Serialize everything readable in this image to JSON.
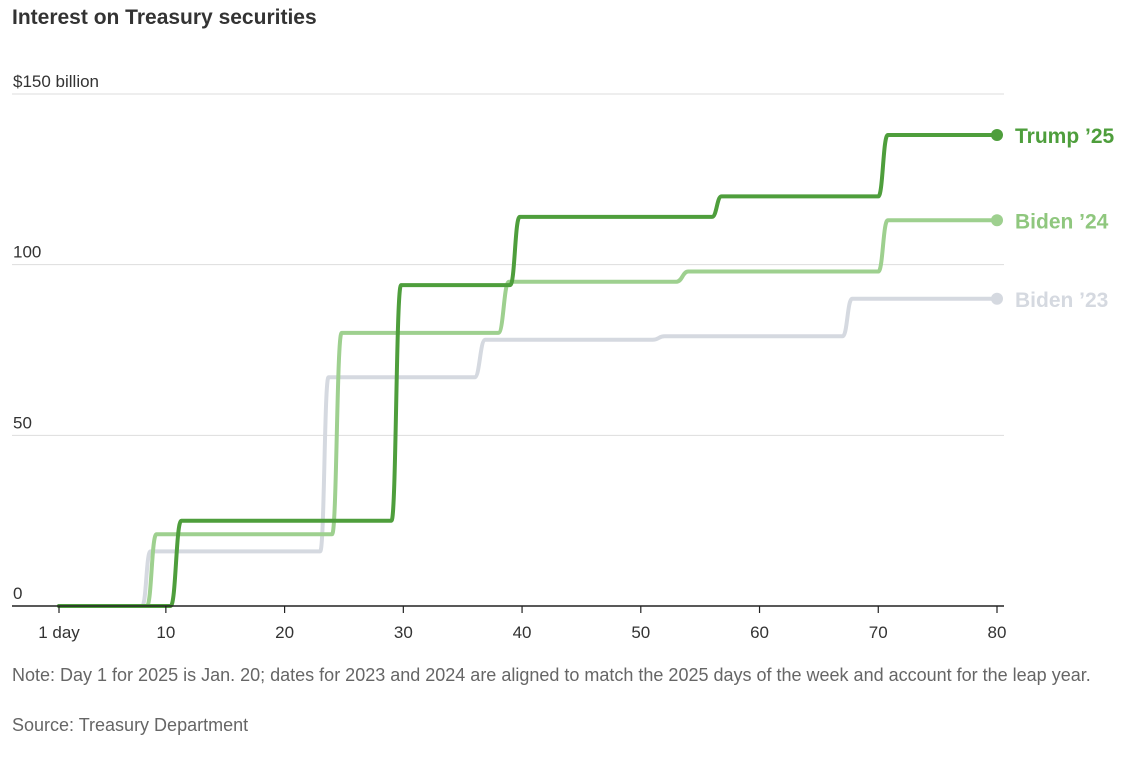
{
  "chart_data": {
    "type": "line",
    "title": "Interest on Treasury securities",
    "ylim": [
      0,
      150
    ],
    "xlim": [
      1,
      80
    ],
    "y_ticks": [
      {
        "value": 150,
        "label": "$150 billion"
      },
      {
        "value": 100,
        "label": "100"
      },
      {
        "value": 50,
        "label": "50"
      },
      {
        "value": 0,
        "label": "0"
      }
    ],
    "x_ticks": [
      {
        "value": 1,
        "label": "1 day"
      },
      {
        "value": 10,
        "label": "10"
      },
      {
        "value": 20,
        "label": "20"
      },
      {
        "value": 30,
        "label": "30"
      },
      {
        "value": 40,
        "label": "40"
      },
      {
        "value": 50,
        "label": "50"
      },
      {
        "value": 60,
        "label": "60"
      },
      {
        "value": 70,
        "label": "70"
      },
      {
        "value": 80,
        "label": "80"
      }
    ],
    "grid": true,
    "series": [
      {
        "name": "Biden ’23",
        "color": "#d5d9e0",
        "x": [
          1,
          8,
          8.7,
          23,
          23.7,
          36,
          36.9,
          51,
          52,
          67,
          67.8,
          80
        ],
        "y": [
          0,
          0,
          16,
          16,
          67,
          67,
          78,
          78,
          79,
          79,
          90,
          90
        ]
      },
      {
        "name": "Biden ’24",
        "color": "#9ed08f",
        "x": [
          1,
          8.4,
          9.2,
          24,
          24.8,
          38,
          38.9,
          53,
          54,
          70,
          70.8,
          80
        ],
        "y": [
          0,
          0,
          21,
          21,
          80,
          80,
          95,
          95,
          98,
          98,
          113,
          113
        ],
        "direct_label_color": "#8fc77e"
      },
      {
        "name": "Trump ’25",
        "color": "#4e9e3c",
        "x": [
          1,
          10.4,
          11.3,
          29,
          29.8,
          39,
          39.8,
          56,
          56.8,
          70,
          70.8,
          80
        ],
        "y": [
          0,
          0,
          25,
          25,
          94,
          94,
          114,
          114,
          120,
          120,
          138,
          138
        ]
      }
    ]
  },
  "footer": {
    "note": "Note: Day 1 for 2025 is Jan. 20; dates for 2023 and 2024 are aligned to match the 2025 days of the week and account for the leap year.",
    "source": "Source: Treasury Department"
  }
}
